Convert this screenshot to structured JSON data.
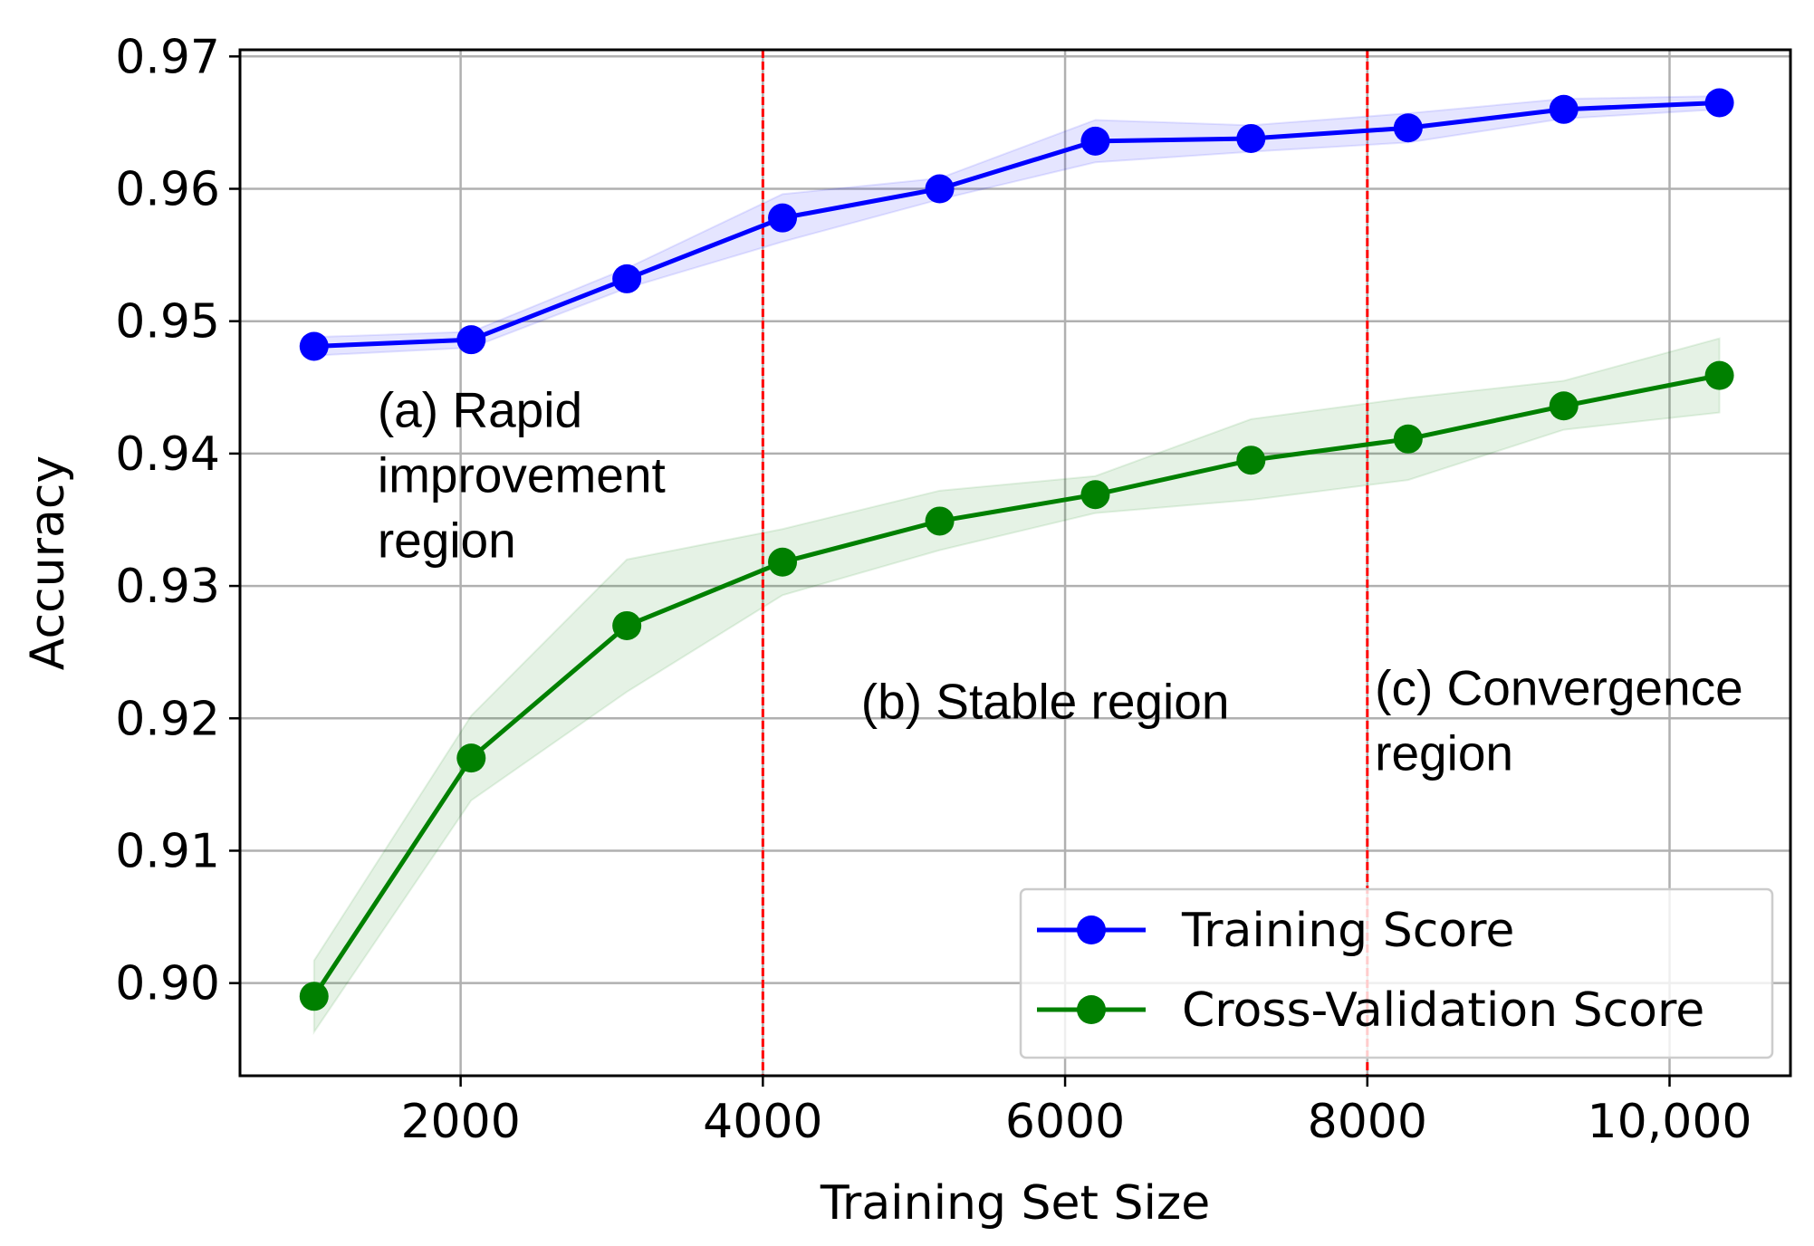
{
  "chart_data": {
    "type": "line",
    "title": "",
    "xlabel": "Training Set Size",
    "ylabel": "Accuracy",
    "xlim": [
      540,
      10800
    ],
    "ylim": [
      0.893,
      0.9705
    ],
    "xticks": [
      2000,
      4000,
      6000,
      8000,
      10000
    ],
    "xtick_labels": [
      "2000",
      "4000",
      "6000",
      "8000",
      "10,000"
    ],
    "yticks": [
      0.9,
      0.91,
      0.92,
      0.93,
      0.94,
      0.95,
      0.96,
      0.97
    ],
    "ytick_labels": [
      "0.90",
      "0.91",
      "0.92",
      "0.93",
      "0.94",
      "0.95",
      "0.96",
      "0.97"
    ],
    "grid": true,
    "legend_position": "lower-right",
    "x": [
      1030,
      2070,
      3100,
      4130,
      5170,
      6200,
      7230,
      8270,
      9300,
      10330
    ],
    "series": [
      {
        "name": "Training Score",
        "color": "#0000ff",
        "values": [
          0.9481,
          0.9486,
          0.9532,
          0.9578,
          0.96,
          0.9636,
          0.9638,
          0.9646,
          0.966,
          0.9665
        ],
        "band_low": [
          0.9474,
          0.948,
          0.9525,
          0.956,
          0.9592,
          0.962,
          0.9628,
          0.9635,
          0.9653,
          0.966
        ],
        "band_high": [
          0.9488,
          0.9492,
          0.954,
          0.9596,
          0.9608,
          0.9652,
          0.9648,
          0.9657,
          0.9668,
          0.967
        ]
      },
      {
        "name": "Cross-Validation Score",
        "color": "#008000",
        "values": [
          0.899,
          0.917,
          0.927,
          0.9318,
          0.9349,
          0.9369,
          0.9395,
          0.9411,
          0.9436,
          0.9459
        ],
        "band_low": [
          0.8963,
          0.9138,
          0.922,
          0.9293,
          0.9327,
          0.9355,
          0.9365,
          0.938,
          0.9418,
          0.9431
        ],
        "band_high": [
          0.9017,
          0.9202,
          0.932,
          0.9343,
          0.9372,
          0.9383,
          0.9426,
          0.9442,
          0.9455,
          0.9487
        ]
      }
    ],
    "vlines": [
      {
        "x": 4000,
        "color": "#ff0000",
        "style": "dashed"
      },
      {
        "x": 8000,
        "color": "#ff0000",
        "style": "dashed"
      }
    ],
    "annotations": [
      {
        "lines": [
          "(a) Rapid",
          "improvement",
          "region"
        ],
        "x": 1450,
        "y": 0.942
      },
      {
        "lines": [
          "(b) Stable region"
        ],
        "x": 4650,
        "y": 0.92
      },
      {
        "lines": [
          "(c) Convergence",
          "region"
        ],
        "x": 8050,
        "y": 0.921
      }
    ]
  }
}
